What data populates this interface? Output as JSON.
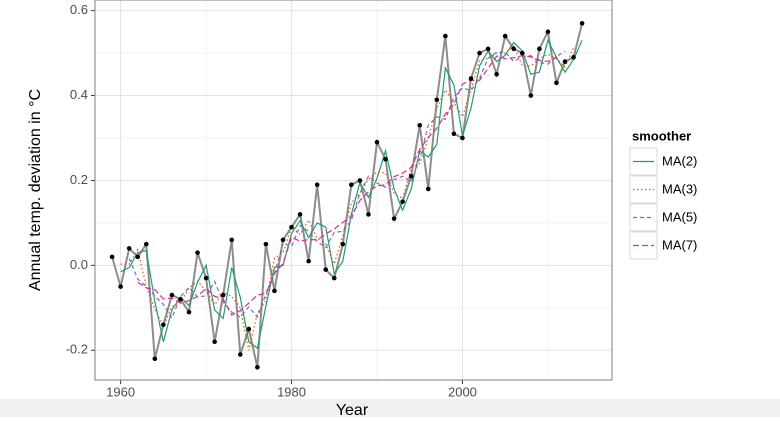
{
  "chart_data": {
    "type": "line",
    "x_label": "Year",
    "y_label": "Annual temp. deviation in °C",
    "legend_title": "smoother",
    "x": [
      1959,
      1960,
      1961,
      1962,
      1963,
      1964,
      1965,
      1966,
      1967,
      1968,
      1969,
      1970,
      1971,
      1972,
      1973,
      1974,
      1975,
      1976,
      1977,
      1978,
      1979,
      1980,
      1981,
      1982,
      1983,
      1984,
      1985,
      1986,
      1987,
      1988,
      1989,
      1990,
      1991,
      1992,
      1993,
      1994,
      1995,
      1996,
      1997,
      1998,
      1999,
      2000,
      2001,
      2002,
      2003,
      2004,
      2005,
      2006,
      2007,
      2008,
      2009,
      2010,
      2011,
      2012,
      2013,
      2014
    ],
    "values": [
      0.02,
      -0.05,
      0.04,
      0.02,
      0.05,
      -0.22,
      -0.14,
      -0.07,
      -0.08,
      -0.11,
      0.03,
      -0.03,
      -0.18,
      -0.07,
      0.06,
      -0.21,
      -0.15,
      -0.24,
      0.05,
      -0.06,
      0.06,
      0.09,
      0.12,
      0.01,
      0.19,
      -0.01,
      -0.03,
      0.05,
      0.19,
      0.2,
      0.12,
      0.29,
      0.25,
      0.11,
      0.15,
      0.21,
      0.33,
      0.18,
      0.39,
      0.54,
      0.31,
      0.3,
      0.44,
      0.5,
      0.51,
      0.45,
      0.54,
      0.51,
      0.5,
      0.4,
      0.51,
      0.55,
      0.43,
      0.48,
      0.49,
      0.57
    ],
    "color": "#8c8c8c",
    "point_color": "#000000",
    "series": [
      {
        "name": "MA(2)",
        "color": "#1b9e77",
        "dash": "solid",
        "values": [
          null,
          -0.015,
          -0.005,
          0.03,
          0.035,
          -0.085,
          -0.18,
          -0.105,
          -0.075,
          -0.095,
          -0.04,
          0,
          -0.105,
          -0.125,
          -0.005,
          -0.075,
          -0.18,
          -0.195,
          -0.095,
          -0.005,
          0,
          0.075,
          0.105,
          0.065,
          0.1,
          0.09,
          -0.02,
          0.01,
          0.12,
          0.195,
          0.16,
          0.205,
          0.27,
          0.18,
          0.13,
          0.18,
          0.27,
          0.255,
          0.285,
          0.465,
          0.425,
          0.305,
          0.37,
          0.47,
          0.505,
          0.48,
          0.495,
          0.525,
          0.505,
          0.45,
          0.455,
          0.53,
          0.49,
          0.455,
          0.485,
          0.53
        ]
      },
      {
        "name": "MA(3)",
        "color": "#d95f02",
        "dash": "dotted",
        "values": [
          null,
          0.003,
          0.003,
          0.037,
          -0.05,
          -0.103,
          -0.143,
          -0.097,
          -0.087,
          -0.053,
          -0.037,
          -0.06,
          -0.093,
          -0.063,
          -0.073,
          -0.1,
          -0.2,
          -0.113,
          -0.083,
          0.017,
          0.03,
          0.09,
          0.073,
          0.107,
          0.063,
          0.05,
          0.003,
          0.07,
          0.147,
          0.17,
          0.203,
          0.22,
          0.217,
          0.17,
          0.157,
          0.23,
          0.24,
          0.3,
          0.37,
          0.413,
          0.383,
          0.35,
          0.413,
          0.483,
          0.487,
          0.5,
          0.5,
          0.517,
          0.47,
          0.47,
          0.487,
          0.497,
          0.487,
          0.467,
          0.513,
          null
        ]
      },
      {
        "name": "MA(5)",
        "color": "#7570b3",
        "dash": "dashed",
        "values": [
          null,
          null,
          0.016,
          -0.032,
          -0.05,
          -0.072,
          -0.092,
          -0.124,
          -0.074,
          -0.052,
          -0.074,
          -0.072,
          -0.038,
          -0.086,
          -0.11,
          -0.122,
          -0.098,
          -0.122,
          -0.068,
          -0.02,
          0.052,
          0.044,
          0.094,
          0.08,
          0.056,
          0.042,
          0.078,
          0.08,
          0.106,
          0.17,
          0.21,
          0.194,
          0.184,
          0.202,
          0.21,
          0.196,
          0.252,
          0.33,
          0.35,
          0.344,
          0.396,
          0.418,
          0.412,
          0.44,
          0.488,
          0.502,
          0.502,
          0.48,
          0.492,
          0.494,
          0.478,
          0.474,
          0.492,
          0.504,
          null,
          null
        ]
      },
      {
        "name": "MA(7)",
        "color": "#e7298a",
        "dash": "longdash",
        "values": [
          null,
          null,
          null,
          -0.04,
          -0.053,
          -0.057,
          -0.079,
          -0.077,
          -0.089,
          -0.083,
          -0.073,
          -0.054,
          -0.073,
          -0.079,
          -0.117,
          -0.106,
          -0.089,
          -0.07,
          -0.066,
          -0.019,
          0.004,
          0.066,
          0.057,
          0.061,
          0.06,
          0.074,
          0.086,
          0.101,
          0.116,
          0.153,
          0.173,
          0.187,
          0.19,
          0.209,
          0.217,
          0.231,
          0.273,
          0.301,
          0.323,
          0.356,
          0.38,
          0.427,
          0.436,
          0.436,
          0.464,
          0.493,
          0.487,
          0.489,
          0.494,
          0.491,
          0.483,
          0.48,
          0.49,
          null,
          null,
          null
        ]
      }
    ],
    "xlim": [
      1957,
      2017.5
    ],
    "xticks": [
      1960,
      1980,
      2000
    ],
    "xminor": [
      1970,
      1990,
      2010
    ],
    "ylim": [
      -0.27,
      0.625
    ],
    "yticks": [
      -0.2,
      {
        "value": 0,
        "label": "0.0"
      },
      0.2,
      0.4,
      0.6
    ],
    "yminor": [
      -0.1,
      0.1,
      0.3,
      0.5
    ],
    "grid": true,
    "legend": "right"
  }
}
